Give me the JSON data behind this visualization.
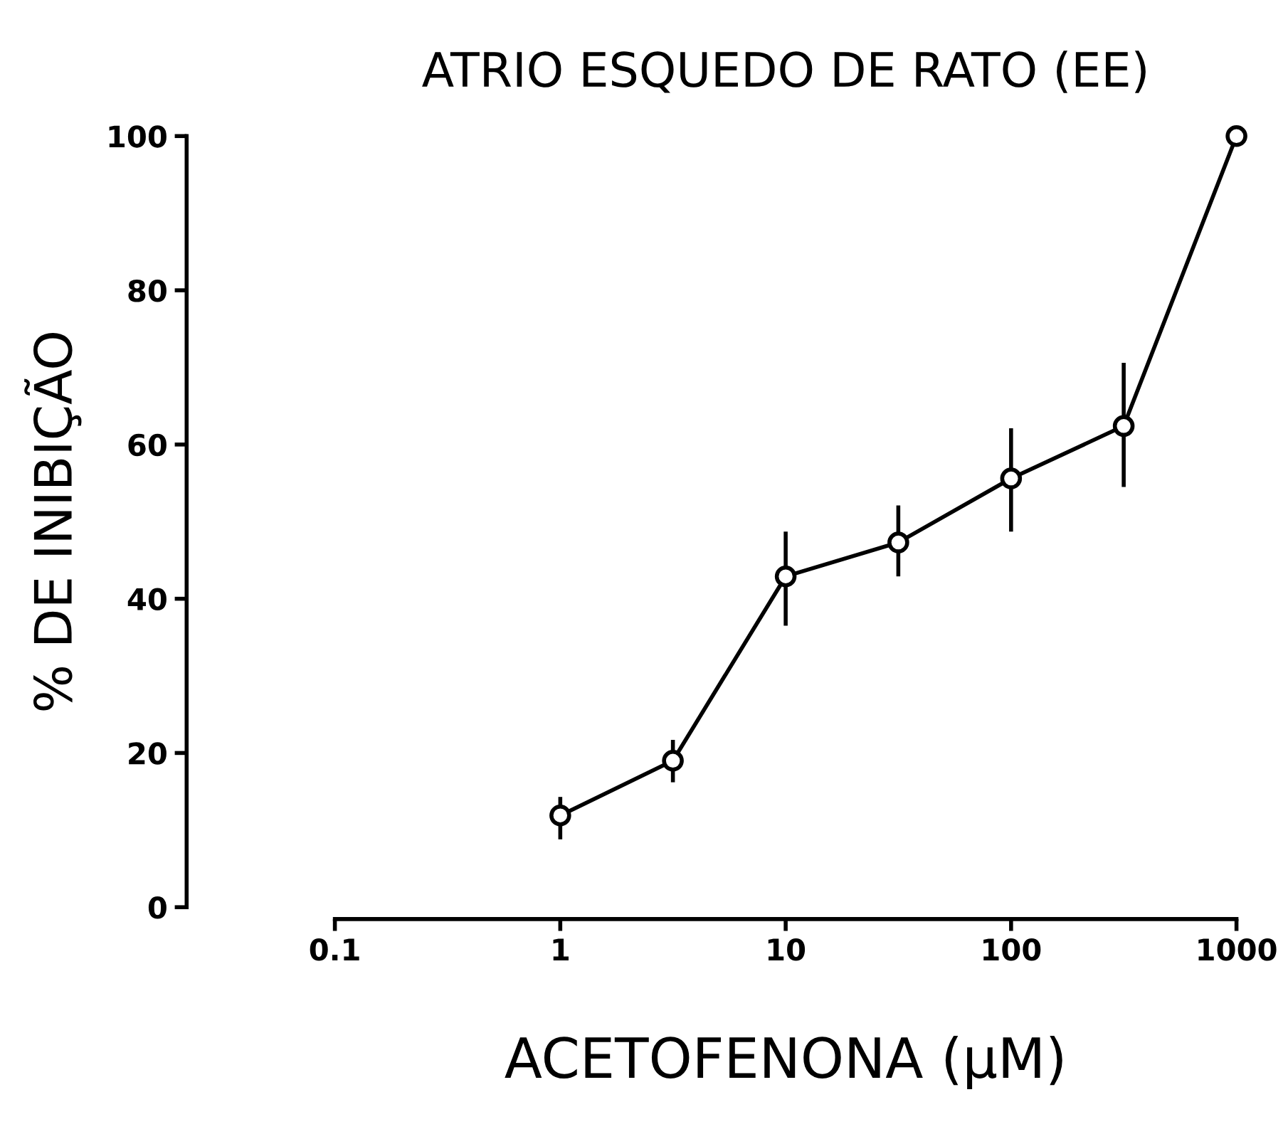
{
  "chart_data": {
    "type": "line",
    "title": "ATRIO ESQUEDO DE RATO (EE)",
    "xlabel": "ACETOFENONA (µM)",
    "ylabel": "% DE INIBIÇÃO",
    "x": [
      1,
      3.16,
      10,
      31.6,
      100,
      316,
      1000
    ],
    "series": [
      {
        "color": "#000000",
        "values": [
          11.9,
          19,
          42.9,
          47.3,
          55.6,
          62.4,
          100
        ],
        "errors": [
          [
            8.8,
            14.3
          ],
          [
            16.2,
            21.7
          ],
          [
            36.5,
            48.7
          ],
          [
            42.9,
            52.1
          ],
          [
            48.7,
            62.1
          ],
          [
            54.5,
            70.6
          ],
          null
        ]
      }
    ],
    "log": "x",
    "xlim": [
      0.1,
      1000
    ],
    "xticks": [
      0.1,
      1,
      10,
      100,
      1000
    ],
    "ylim": [
      0,
      100
    ],
    "yticks": [
      0,
      20,
      40,
      60,
      80,
      100
    ],
    "marker": "circle",
    "line_style": "solid",
    "grid": false,
    "legend": false
  }
}
